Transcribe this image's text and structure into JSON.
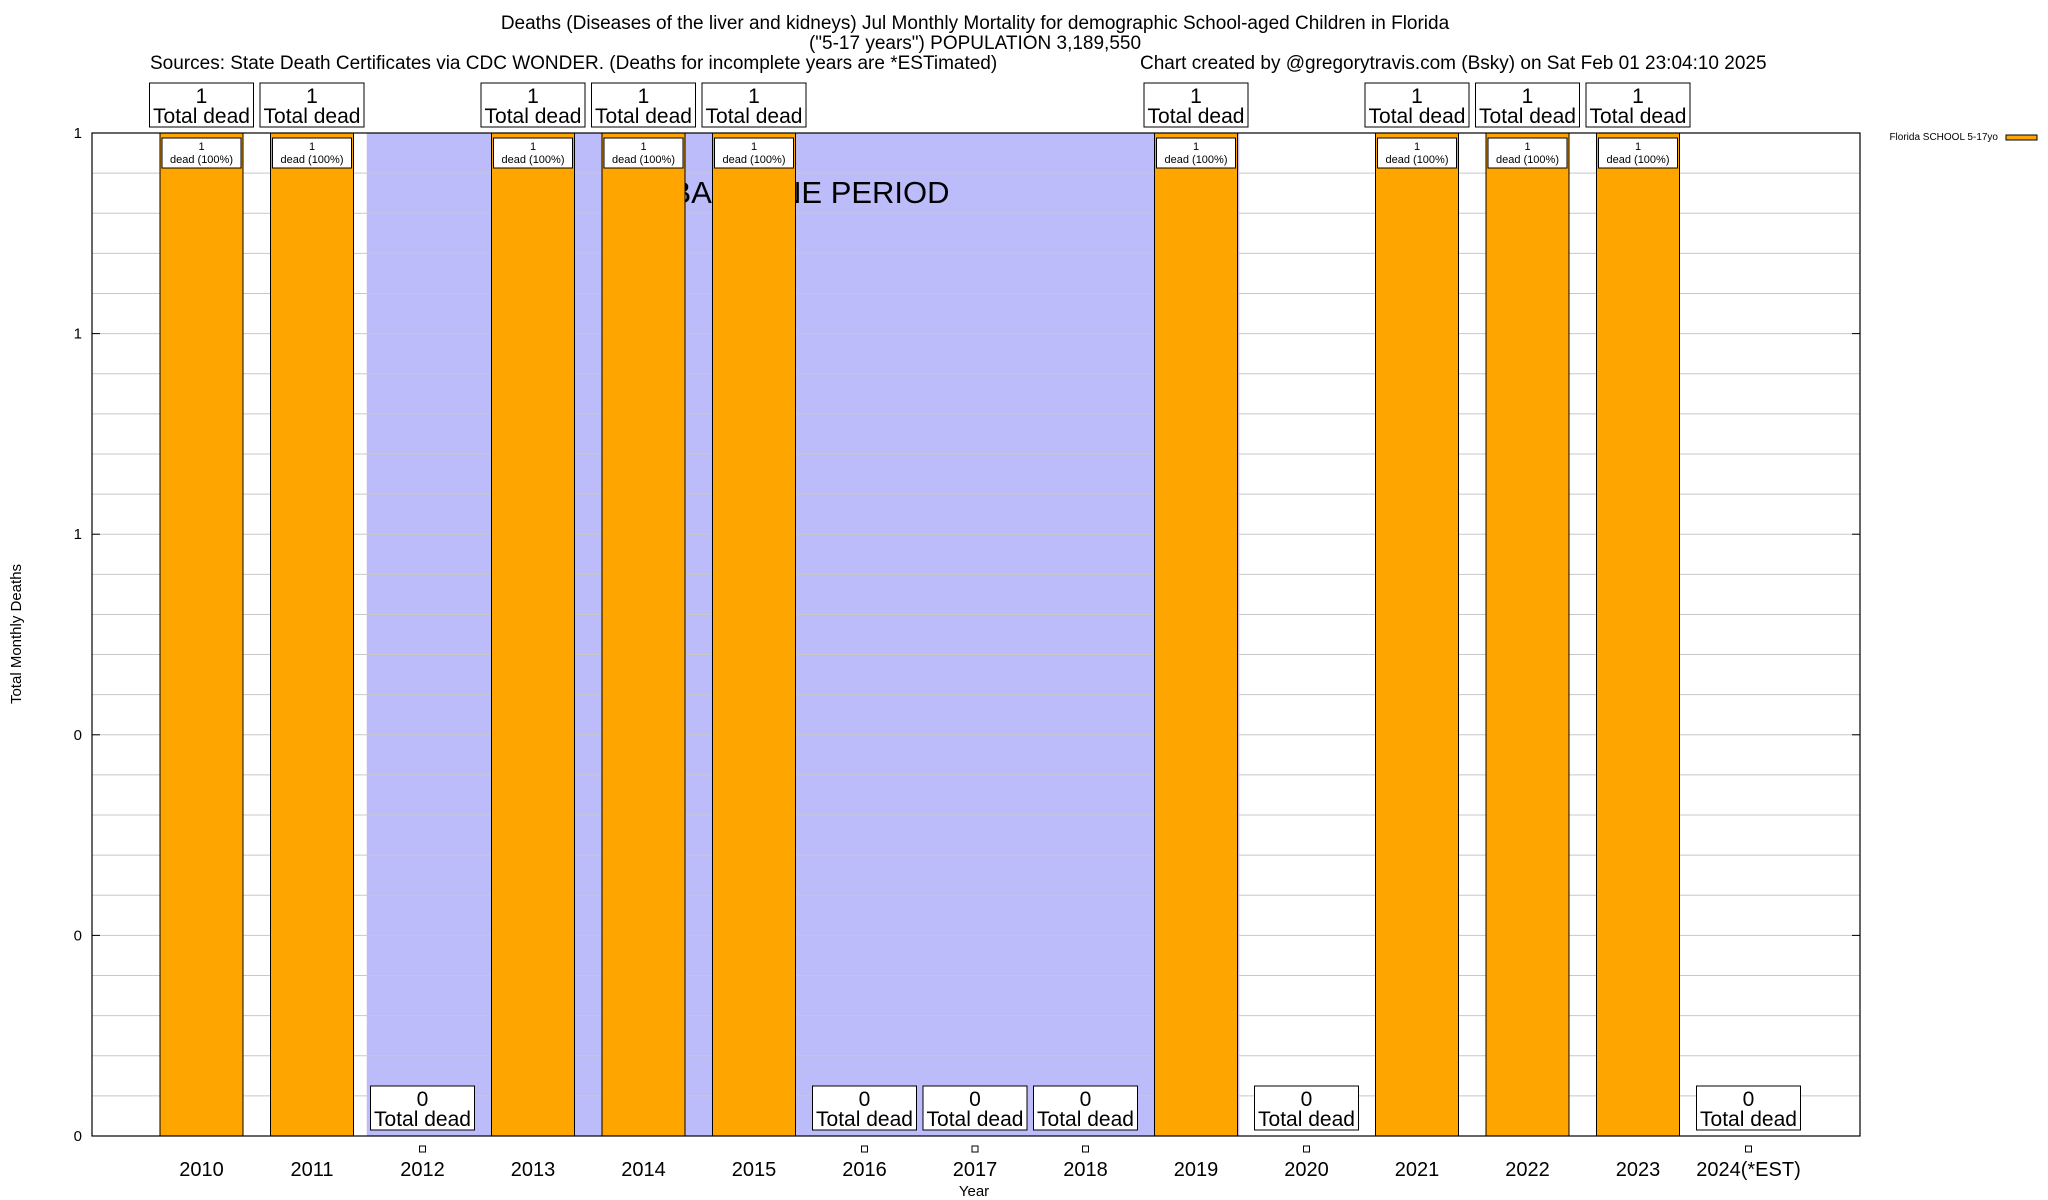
{
  "header": {
    "title_line1": "Deaths (Diseases of the liver and kidneys) Jul Monthly Mortality for demographic School-aged Children in Florida",
    "title_line2": "(\"5-17 years\") POPULATION 3,189,550",
    "sources": "Sources: State Death Certificates via CDC WONDER. (Deaths for incomplete years are *ESTimated)",
    "credit": "Chart created by @gregorytravis.com (Bsky) on Sat Feb 01 23:04:10 2025"
  },
  "colors": {
    "bar": "#ffa500",
    "baseline_band": "#bcbcfa",
    "grid": "#c8c8c8",
    "axis": "#000000"
  },
  "chart_data": {
    "type": "bar",
    "title": "Deaths (Diseases of the liver and kidneys) Jul Monthly Mortality for demographic School-aged Children in Florida",
    "xlabel": "Year",
    "ylabel": "Total Monthly Deaths",
    "ylim": [
      0,
      1
    ],
    "y_ticks": [
      0,
      0.2,
      0.4,
      0.6,
      0.8,
      1
    ],
    "y_tick_labels": [
      "0",
      "0",
      "0",
      "1",
      "1",
      "1"
    ],
    "grid": true,
    "legend_position": "top-right",
    "categories": [
      "2010",
      "2011",
      "2012",
      "2013",
      "2014",
      "2015",
      "2016",
      "2017",
      "2018",
      "2019",
      "2020",
      "2021",
      "2022",
      "2023",
      "2024(*EST)"
    ],
    "series": [
      {
        "name": "Florida SCHOOL 5-17yo",
        "values": [
          1,
          1,
          0,
          1,
          1,
          1,
          0,
          0,
          0,
          1,
          0,
          1,
          1,
          1,
          0
        ]
      }
    ],
    "total_label": "Total dead",
    "inner_label": "dead (100%)",
    "baseline_band": {
      "from": "2012",
      "to": "2019",
      "label": "BASELINE PERIOD"
    }
  }
}
